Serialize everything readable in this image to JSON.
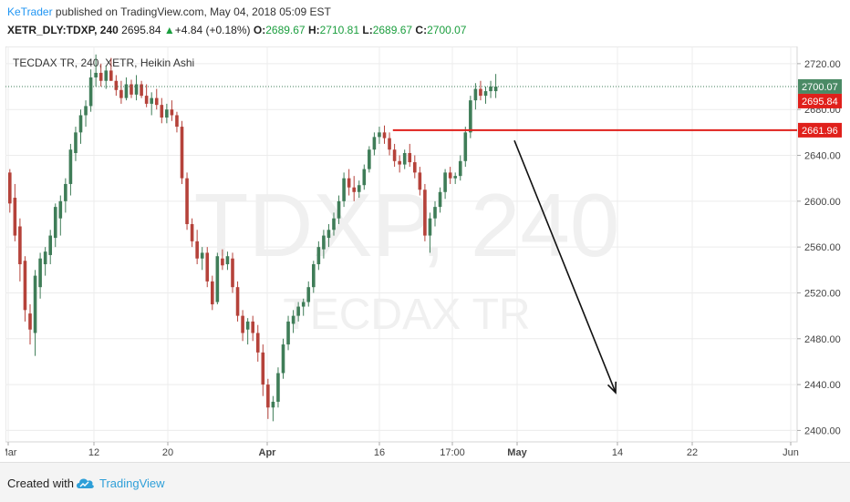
{
  "header": {
    "author": "KeTrader",
    "published_text": "published on TradingView.com, May 04, 2018 05:09 EST",
    "symbol": "XETR_DLY:TDXP, 240",
    "last": "2695.84",
    "change_arrow": "▲",
    "change": "+4.84 (+0.18%)",
    "o_label": "O:",
    "o_value": "2689.67",
    "h_label": "H:",
    "h_value": "2710.81",
    "l_label": "L:",
    "l_value": "2689.67",
    "c_label": "C:",
    "c_value": "2700.07"
  },
  "footer": {
    "created_with": "Created with",
    "brand": "TradingView",
    "logo_icon": "tradingview-cloud-icon"
  },
  "colors": {
    "up": "#3f7d58",
    "down": "#b5423a",
    "grid": "#ececec",
    "red_line": "#e0201b",
    "green_tag": "#4a8a65",
    "watermark": "#f0f0f0",
    "brand": "#2e9fd8"
  },
  "chart_data": {
    "type": "candlestick",
    "title": "TECDAX TR, 240, XETR, Heikin Ashi",
    "watermark_symbol": "TDXP, 240",
    "watermark_name": "TECDAX TR",
    "ylim": [
      2390,
      2735
    ],
    "y_ticks": [
      2400,
      2440,
      2480,
      2520,
      2560,
      2600,
      2640,
      2680,
      2720
    ],
    "x_ticks": [
      "Mar",
      "12",
      "20",
      "Apr",
      "16",
      "17:00",
      "May",
      "14",
      "22",
      "Jun"
    ],
    "price_tags": [
      {
        "label": "2700.07",
        "value": 2700.07,
        "style": "green"
      },
      {
        "label": "2695.84",
        "value": 2695.84,
        "style": "red"
      },
      {
        "label": "2661.96",
        "value": 2661.96,
        "style": "red"
      }
    ],
    "horizontal_level": {
      "value": 2661.96,
      "x_start_index": 76
    },
    "projection_arrow": {
      "from": {
        "index": 100,
        "value": 2653
      },
      "to": {
        "index": 120,
        "value": 2433
      }
    },
    "candles": [
      {
        "o": 2625,
        "h": 2628,
        "l": 2590,
        "c": 2598
      },
      {
        "o": 2603,
        "h": 2615,
        "l": 2565,
        "c": 2570
      },
      {
        "o": 2578,
        "h": 2585,
        "l": 2530,
        "c": 2545
      },
      {
        "o": 2548,
        "h": 2552,
        "l": 2495,
        "c": 2505
      },
      {
        "o": 2502,
        "h": 2510,
        "l": 2475,
        "c": 2488
      },
      {
        "o": 2485,
        "h": 2540,
        "l": 2465,
        "c": 2535
      },
      {
        "o": 2525,
        "h": 2555,
        "l": 2515,
        "c": 2550
      },
      {
        "o": 2545,
        "h": 2560,
        "l": 2535,
        "c": 2556
      },
      {
        "o": 2553,
        "h": 2575,
        "l": 2545,
        "c": 2570
      },
      {
        "o": 2568,
        "h": 2598,
        "l": 2560,
        "c": 2595
      },
      {
        "o": 2585,
        "h": 2605,
        "l": 2570,
        "c": 2600
      },
      {
        "o": 2600,
        "h": 2620,
        "l": 2590,
        "c": 2615
      },
      {
        "o": 2615,
        "h": 2650,
        "l": 2605,
        "c": 2645
      },
      {
        "o": 2642,
        "h": 2665,
        "l": 2635,
        "c": 2660
      },
      {
        "o": 2660,
        "h": 2680,
        "l": 2650,
        "c": 2675
      },
      {
        "o": 2675,
        "h": 2688,
        "l": 2665,
        "c": 2683
      },
      {
        "o": 2683,
        "h": 2715,
        "l": 2678,
        "c": 2708
      },
      {
        "o": 2708,
        "h": 2728,
        "l": 2700,
        "c": 2712
      },
      {
        "o": 2712,
        "h": 2720,
        "l": 2700,
        "c": 2705
      },
      {
        "o": 2705,
        "h": 2718,
        "l": 2698,
        "c": 2714
      },
      {
        "o": 2714,
        "h": 2725,
        "l": 2705,
        "c": 2705
      },
      {
        "o": 2705,
        "h": 2710,
        "l": 2692,
        "c": 2697
      },
      {
        "o": 2697,
        "h": 2705,
        "l": 2685,
        "c": 2690
      },
      {
        "o": 2690,
        "h": 2708,
        "l": 2688,
        "c": 2702
      },
      {
        "o": 2702,
        "h": 2706,
        "l": 2690,
        "c": 2693
      },
      {
        "o": 2693,
        "h": 2710,
        "l": 2688,
        "c": 2702
      },
      {
        "o": 2702,
        "h": 2705,
        "l": 2690,
        "c": 2692
      },
      {
        "o": 2692,
        "h": 2702,
        "l": 2682,
        "c": 2685
      },
      {
        "o": 2685,
        "h": 2695,
        "l": 2675,
        "c": 2690
      },
      {
        "o": 2690,
        "h": 2698,
        "l": 2680,
        "c": 2684
      },
      {
        "o": 2684,
        "h": 2690,
        "l": 2668,
        "c": 2673
      },
      {
        "o": 2673,
        "h": 2685,
        "l": 2668,
        "c": 2680
      },
      {
        "o": 2680,
        "h": 2688,
        "l": 2670,
        "c": 2675
      },
      {
        "o": 2675,
        "h": 2678,
        "l": 2660,
        "c": 2665
      },
      {
        "o": 2665,
        "h": 2670,
        "l": 2615,
        "c": 2620
      },
      {
        "o": 2620,
        "h": 2625,
        "l": 2575,
        "c": 2580
      },
      {
        "o": 2580,
        "h": 2585,
        "l": 2560,
        "c": 2565
      },
      {
        "o": 2565,
        "h": 2575,
        "l": 2545,
        "c": 2550
      },
      {
        "o": 2550,
        "h": 2560,
        "l": 2540,
        "c": 2555
      },
      {
        "o": 2555,
        "h": 2560,
        "l": 2525,
        "c": 2530
      },
      {
        "o": 2530,
        "h": 2535,
        "l": 2505,
        "c": 2510
      },
      {
        "o": 2512,
        "h": 2555,
        "l": 2510,
        "c": 2552
      },
      {
        "o": 2550,
        "h": 2558,
        "l": 2540,
        "c": 2544
      },
      {
        "o": 2545,
        "h": 2556,
        "l": 2540,
        "c": 2552
      },
      {
        "o": 2550,
        "h": 2555,
        "l": 2520,
        "c": 2525
      },
      {
        "o": 2525,
        "h": 2530,
        "l": 2495,
        "c": 2500
      },
      {
        "o": 2500,
        "h": 2505,
        "l": 2478,
        "c": 2485
      },
      {
        "o": 2488,
        "h": 2498,
        "l": 2475,
        "c": 2495
      },
      {
        "o": 2495,
        "h": 2500,
        "l": 2478,
        "c": 2485
      },
      {
        "o": 2485,
        "h": 2492,
        "l": 2460,
        "c": 2468
      },
      {
        "o": 2468,
        "h": 2475,
        "l": 2430,
        "c": 2440
      },
      {
        "o": 2440,
        "h": 2445,
        "l": 2410,
        "c": 2420
      },
      {
        "o": 2420,
        "h": 2430,
        "l": 2408,
        "c": 2425
      },
      {
        "o": 2425,
        "h": 2455,
        "l": 2420,
        "c": 2450
      },
      {
        "o": 2450,
        "h": 2480,
        "l": 2445,
        "c": 2475
      },
      {
        "o": 2475,
        "h": 2500,
        "l": 2470,
        "c": 2495
      },
      {
        "o": 2493,
        "h": 2505,
        "l": 2485,
        "c": 2500
      },
      {
        "o": 2500,
        "h": 2512,
        "l": 2495,
        "c": 2508
      },
      {
        "o": 2508,
        "h": 2515,
        "l": 2500,
        "c": 2512
      },
      {
        "o": 2512,
        "h": 2530,
        "l": 2508,
        "c": 2525
      },
      {
        "o": 2525,
        "h": 2548,
        "l": 2520,
        "c": 2545
      },
      {
        "o": 2545,
        "h": 2565,
        "l": 2540,
        "c": 2560
      },
      {
        "o": 2558,
        "h": 2575,
        "l": 2550,
        "c": 2570
      },
      {
        "o": 2568,
        "h": 2580,
        "l": 2560,
        "c": 2575
      },
      {
        "o": 2575,
        "h": 2590,
        "l": 2570,
        "c": 2585
      },
      {
        "o": 2585,
        "h": 2605,
        "l": 2580,
        "c": 2600
      },
      {
        "o": 2600,
        "h": 2625,
        "l": 2595,
        "c": 2620
      },
      {
        "o": 2620,
        "h": 2628,
        "l": 2605,
        "c": 2612
      },
      {
        "o": 2612,
        "h": 2622,
        "l": 2600,
        "c": 2608
      },
      {
        "o": 2608,
        "h": 2618,
        "l": 2603,
        "c": 2614
      },
      {
        "o": 2614,
        "h": 2632,
        "l": 2610,
        "c": 2628
      },
      {
        "o": 2628,
        "h": 2648,
        "l": 2625,
        "c": 2645
      },
      {
        "o": 2645,
        "h": 2660,
        "l": 2640,
        "c": 2656
      },
      {
        "o": 2656,
        "h": 2665,
        "l": 2650,
        "c": 2660
      },
      {
        "o": 2660,
        "h": 2666,
        "l": 2650,
        "c": 2655
      },
      {
        "o": 2655,
        "h": 2660,
        "l": 2640,
        "c": 2645
      },
      {
        "o": 2645,
        "h": 2650,
        "l": 2630,
        "c": 2635
      },
      {
        "o": 2635,
        "h": 2640,
        "l": 2625,
        "c": 2632
      },
      {
        "o": 2632,
        "h": 2645,
        "l": 2628,
        "c": 2642
      },
      {
        "o": 2642,
        "h": 2650,
        "l": 2630,
        "c": 2634
      },
      {
        "o": 2634,
        "h": 2640,
        "l": 2620,
        "c": 2625
      },
      {
        "o": 2625,
        "h": 2630,
        "l": 2605,
        "c": 2610
      },
      {
        "o": 2610,
        "h": 2615,
        "l": 2565,
        "c": 2570
      },
      {
        "o": 2570,
        "h": 2590,
        "l": 2555,
        "c": 2585
      },
      {
        "o": 2585,
        "h": 2600,
        "l": 2578,
        "c": 2595
      },
      {
        "o": 2595,
        "h": 2612,
        "l": 2590,
        "c": 2608
      },
      {
        "o": 2608,
        "h": 2628,
        "l": 2602,
        "c": 2625
      },
      {
        "o": 2625,
        "h": 2630,
        "l": 2615,
        "c": 2620
      },
      {
        "o": 2620,
        "h": 2625,
        "l": 2615,
        "c": 2622
      },
      {
        "o": 2622,
        "h": 2640,
        "l": 2618,
        "c": 2635
      },
      {
        "o": 2635,
        "h": 2665,
        "l": 2630,
        "c": 2660
      },
      {
        "o": 2660,
        "h": 2692,
        "l": 2655,
        "c": 2688
      },
      {
        "o": 2688,
        "h": 2703,
        "l": 2680,
        "c": 2698
      },
      {
        "o": 2698,
        "h": 2705,
        "l": 2688,
        "c": 2692
      },
      {
        "o": 2692,
        "h": 2700,
        "l": 2685,
        "c": 2696
      },
      {
        "o": 2696,
        "h": 2705,
        "l": 2690,
        "c": 2700
      },
      {
        "o": 2696,
        "h": 2711,
        "l": 2690,
        "c": 2700
      }
    ]
  }
}
